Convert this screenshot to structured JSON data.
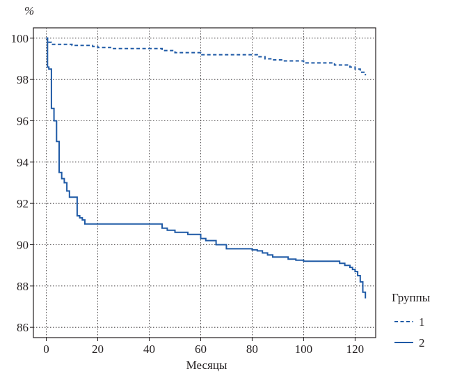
{
  "chart_data": {
    "type": "line",
    "xlabel": "Месяцы",
    "ylabel": "%",
    "xlim": [
      -5,
      128
    ],
    "ylim": [
      85.5,
      100.5
    ],
    "x_ticks": [
      0,
      20,
      40,
      60,
      80,
      100,
      120
    ],
    "x_tick_labels": [
      "0",
      "20",
      "40",
      "60",
      "80",
      "100",
      "120"
    ],
    "y_ticks": [
      86,
      88,
      90,
      92,
      94,
      96,
      98,
      100
    ],
    "y_tick_labels": [
      "86",
      "88",
      "90",
      "92",
      "94",
      "96",
      "98",
      "100"
    ],
    "grid": true,
    "grid_style": "dotted",
    "legend": {
      "title": "Группы",
      "position": "right",
      "entries": [
        "1",
        "2"
      ]
    },
    "series": [
      {
        "name": "1",
        "style": "dashed",
        "color": "#1f5aa6",
        "step": true,
        "x": [
          0,
          0.5,
          1,
          2,
          5,
          10,
          18,
          20,
          25,
          40,
          45,
          50,
          60,
          70,
          80,
          82,
          85,
          88,
          92,
          100,
          112,
          118,
          120,
          122,
          124
        ],
        "y": [
          100,
          99.9,
          99.8,
          99.7,
          99.7,
          99.65,
          99.6,
          99.55,
          99.5,
          99.5,
          99.4,
          99.3,
          99.2,
          99.2,
          99.2,
          99.1,
          99.0,
          98.95,
          98.9,
          98.8,
          98.7,
          98.6,
          98.5,
          98.35,
          98.2
        ]
      },
      {
        "name": "2",
        "style": "solid",
        "color": "#1f5aa6",
        "step": true,
        "x": [
          0,
          0.5,
          1,
          2,
          3,
          4,
          5,
          6,
          7,
          8,
          9,
          12,
          13,
          14,
          15,
          44,
          45,
          47,
          50,
          55,
          60,
          62,
          66,
          70,
          79,
          80,
          82,
          84,
          86,
          88,
          90,
          94,
          97,
          100,
          112,
          114,
          116,
          118,
          119,
          120,
          121,
          122,
          123,
          124
        ],
        "y": [
          100,
          98.6,
          98.5,
          96.6,
          96.0,
          95.0,
          93.5,
          93.2,
          93.0,
          92.6,
          92.3,
          91.4,
          91.3,
          91.2,
          91.0,
          91.0,
          90.8,
          90.7,
          90.6,
          90.5,
          90.3,
          90.2,
          90.0,
          89.8,
          89.8,
          89.75,
          89.7,
          89.6,
          89.5,
          89.4,
          89.4,
          89.3,
          89.25,
          89.2,
          89.2,
          89.1,
          89.0,
          88.9,
          88.8,
          88.7,
          88.5,
          88.2,
          87.7,
          87.4
        ]
      }
    ]
  }
}
